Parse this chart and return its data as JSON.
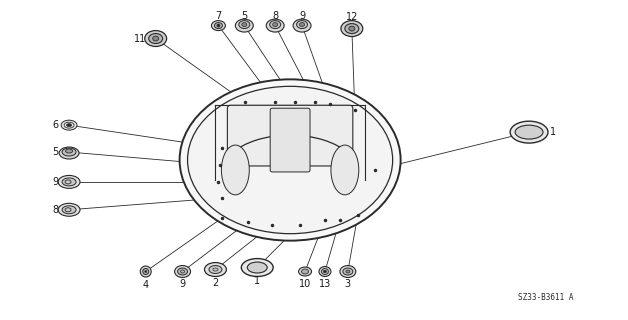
{
  "bg_color": "#ffffff",
  "line_color": "#2a2a2a",
  "part_color": "#2a2a2a",
  "ref_code": "SZ33-B3611 A",
  "fig_width": 6.28,
  "fig_height": 3.2,
  "dpi": 100
}
